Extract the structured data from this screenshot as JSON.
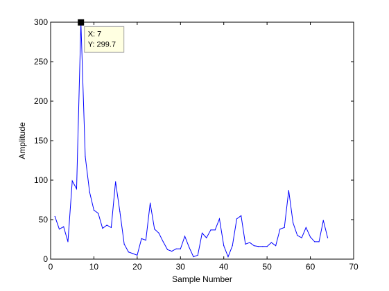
{
  "chart_data": {
    "type": "line",
    "xlabel": "Sample Number",
    "ylabel": "Amplitude",
    "xlim": [
      0,
      70
    ],
    "ylim": [
      0,
      300
    ],
    "xticks": [
      0,
      10,
      20,
      30,
      40,
      50,
      60,
      70
    ],
    "yticks": [
      0,
      50,
      100,
      150,
      200,
      250,
      300
    ],
    "grid": false,
    "series": [
      {
        "color": "#0000ff",
        "x": [
          1,
          2,
          3,
          4,
          5,
          6,
          7,
          8,
          9,
          10,
          11,
          12,
          13,
          14,
          15,
          16,
          17,
          18,
          19,
          20,
          21,
          22,
          23,
          24,
          25,
          26,
          27,
          28,
          29,
          30,
          31,
          32,
          33,
          34,
          35,
          36,
          37,
          38,
          39,
          40,
          41,
          42,
          43,
          44,
          45,
          46,
          47,
          48,
          49,
          50,
          51,
          52,
          53,
          54,
          55,
          56,
          57,
          58,
          59,
          60,
          61,
          62,
          63,
          64
        ],
        "y": [
          54,
          38,
          41,
          22,
          99,
          89,
          299.7,
          130,
          85,
          62,
          58,
          39,
          43,
          40,
          98,
          60,
          19,
          9,
          7,
          5,
          26,
          24,
          71,
          38,
          33,
          22,
          12,
          10,
          13,
          13,
          29,
          15,
          3,
          5,
          33,
          27,
          37,
          37,
          51,
          17,
          3,
          17,
          51,
          55,
          19,
          21,
          17,
          16,
          16,
          16,
          21,
          17,
          38,
          40,
          87,
          46,
          30,
          27,
          40,
          28,
          22,
          22,
          49,
          27
        ]
      }
    ],
    "datatip": {
      "x_text": "X: 7",
      "y_text": "Y: 299.7",
      "x": 7,
      "y": 299.7
    }
  }
}
